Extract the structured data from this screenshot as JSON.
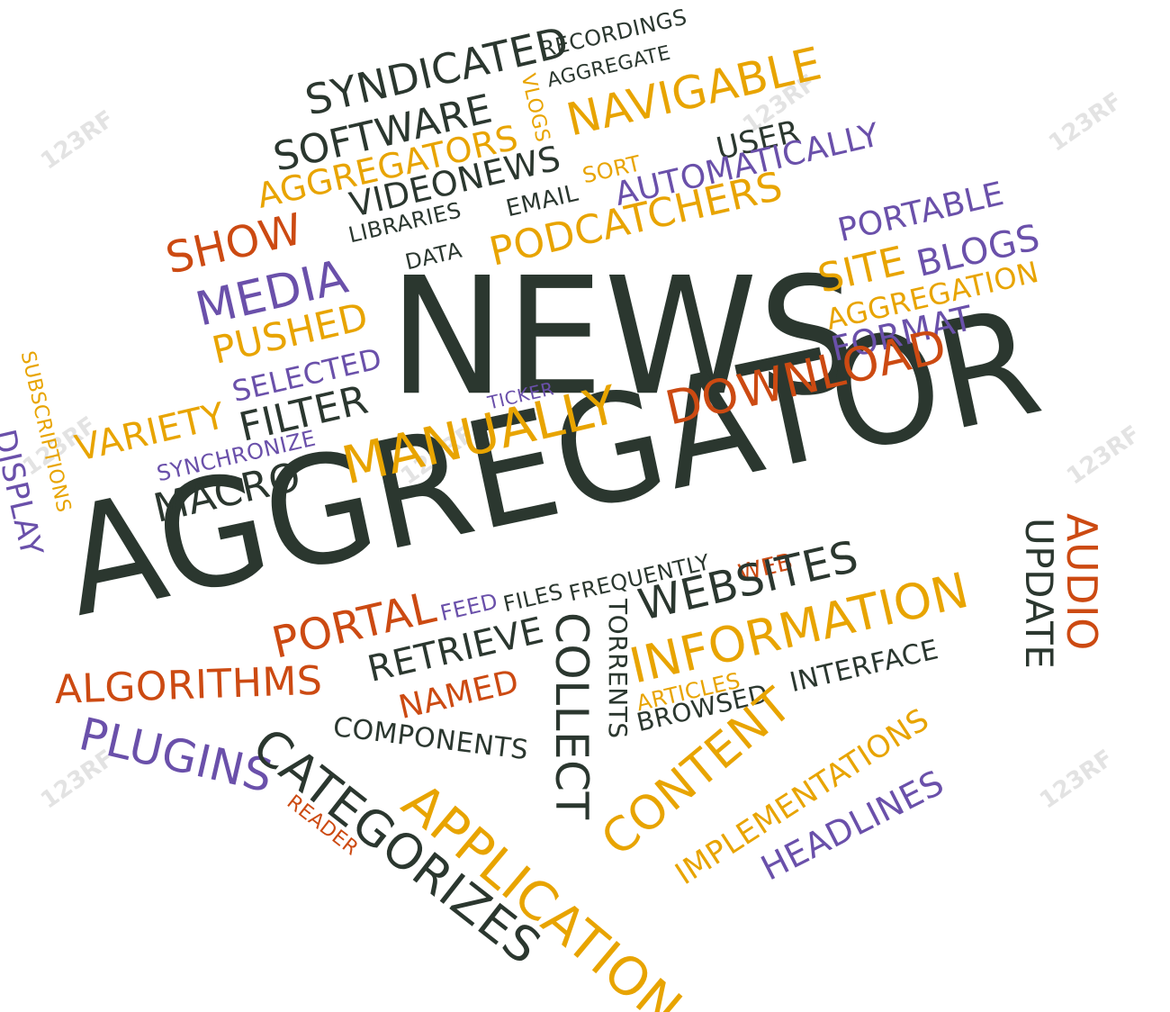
{
  "words": {
    "news": "NEWS",
    "aggregator_big": "AGGREGATOR",
    "syndicated": "SYNDICATED",
    "recordings": "RECORDINGS",
    "aggregate": "AGGREGATE",
    "software": "SOFTWARE",
    "vlogs": "VLOGS",
    "navigable": "NAVIGABLE",
    "aggregators": "AGGREGATORS",
    "user": "USER",
    "videonews": "VIDEONEWS",
    "sort": "SORT",
    "automatically": "AUTOMATICALLY",
    "libraries": "LIBRARIES",
    "email": "EMAIL",
    "podcatchers": "PODCATCHERS",
    "portable": "PORTABLE",
    "show": "SHOW",
    "data": "DATA",
    "site": "SITE",
    "blogs": "BLOGS",
    "media": "MEDIA",
    "aggregation": "AGGREGATION",
    "pushed": "PUSHED",
    "format": "FORMAT",
    "subscriptions": "SUBSCRIPTIONS",
    "selected": "SELECTED",
    "ticker": "TICKER",
    "download": "DOWNLOAD",
    "filter": "FILTER",
    "variety": "VARIETY",
    "display": "DISPLAY",
    "synchronize": "SYNCHRONIZE",
    "manually": "MANUALLY",
    "macro": "MACRO",
    "audio": "AUDIO",
    "update": "UPDATE",
    "web": "WEB",
    "feed": "FEED",
    "files": "FILES",
    "frequently": "FREQUENTLY",
    "torrents": "TORRENTS",
    "websites": "WEBSITES",
    "portal": "PORTAL",
    "collect": "COLLECT",
    "retrieve": "RETRIEVE",
    "information": "INFORMATION",
    "algorithms": "ALGORITHMS",
    "named": "NAMED",
    "articles": "ARTICLES",
    "interface": "INTERFACE",
    "components": "COMPONENTS",
    "browsed": "BROWSED",
    "plugins": "PLUGINS",
    "categorizes": "CATEGORIZES",
    "reader": "READER",
    "application": "APPLICATION",
    "content": "CONTENT",
    "implementations": "IMPLEMENTATIONS",
    "headlines": "HEADLINES"
  },
  "watermark_text": "123RF",
  "colors": {
    "dark": "#2b372f",
    "orange": "#e8a400",
    "red": "#cc4a12",
    "purple": "#6a50aa"
  }
}
